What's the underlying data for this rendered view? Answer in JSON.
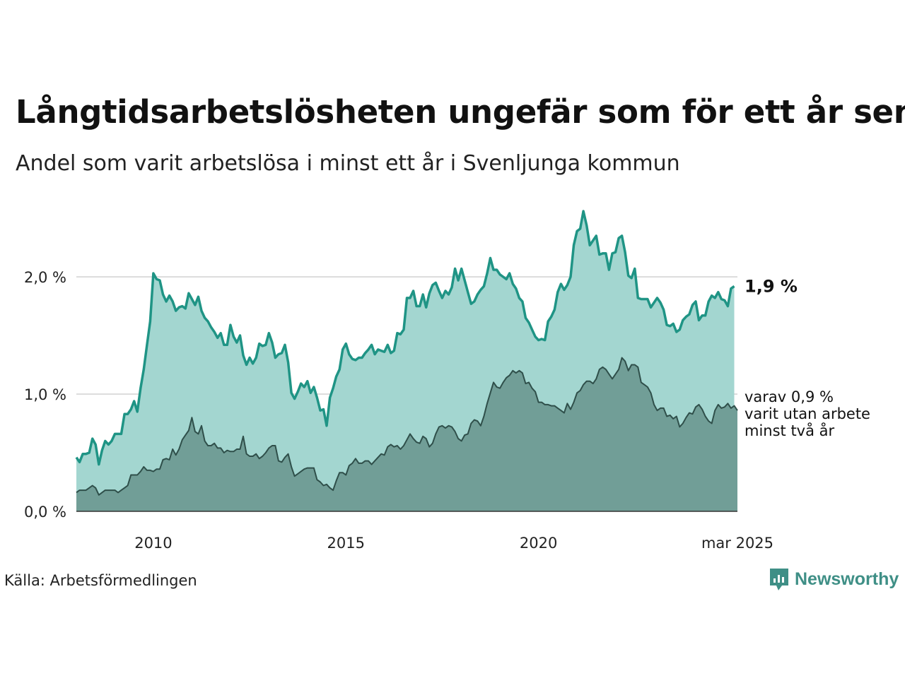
{
  "title": "Långtidsarbetslösheten ungefär som för ett år sen",
  "subtitle": "Andel som varit arbetslösa i minst ett år i Svenljunga kommun",
  "source": "Källa: Arbetsförmedlingen",
  "logo_text": "Newsworthy",
  "colors": {
    "line_total": "#1f9485",
    "area_total": "#a3d6d0",
    "line_two_years": "#2f4f4a",
    "area_two_years": "#719e97",
    "grid": "#dddddd",
    "logo": "#3f8f86"
  },
  "chart_data": {
    "type": "area",
    "x_start": "2008-01",
    "x_end": "2025-03",
    "frequency": "monthly",
    "ylim": [
      0,
      2.7
    ],
    "ytick_values": [
      0,
      1,
      2
    ],
    "ytick_labels": [
      "0,0 %",
      "1,0 %",
      "2,0 %"
    ],
    "xtick_dates": [
      "2010-01",
      "2015-01",
      "2020-01",
      "2025-03"
    ],
    "xtick_labels": [
      "2010",
      "2015",
      "2020",
      "mar 2025"
    ],
    "grid": true,
    "end_label_total": "1,9 %",
    "end_label_two_years": [
      "varav 0,9 %",
      "varit utan arbete",
      "minst två år"
    ],
    "series": [
      {
        "values": [
          0.46,
          0.42,
          0.49,
          0.49,
          0.5,
          0.62,
          0.57,
          0.4,
          0.52,
          0.6,
          0.57,
          0.6,
          0.66,
          0.66,
          0.66,
          0.83,
          0.83,
          0.87,
          0.94,
          0.85,
          1.05,
          1.21,
          1.42,
          1.62,
          2.03,
          1.98,
          1.97,
          1.85,
          1.79,
          1.84,
          1.79,
          1.71,
          1.74,
          1.75,
          1.73,
          1.86,
          1.81,
          1.76,
          1.83,
          1.71,
          1.65,
          1.62,
          1.57,
          1.53,
          1.48,
          1.52,
          1.42,
          1.42,
          1.59,
          1.49,
          1.44,
          1.5,
          1.33,
          1.25,
          1.31,
          1.26,
          1.31,
          1.43,
          1.41,
          1.42,
          1.52,
          1.44,
          1.31,
          1.34,
          1.35,
          1.42,
          1.27,
          1.01,
          0.96,
          1.02,
          1.09,
          1.06,
          1.11,
          1.01,
          1.06,
          0.97,
          0.86,
          0.87,
          0.73,
          0.97,
          1.05,
          1.15,
          1.21,
          1.38,
          1.43,
          1.34,
          1.3,
          1.29,
          1.31,
          1.31,
          1.35,
          1.38,
          1.42,
          1.34,
          1.38,
          1.37,
          1.36,
          1.42,
          1.35,
          1.37,
          1.52,
          1.51,
          1.55,
          1.82,
          1.82,
          1.88,
          1.75,
          1.75,
          1.85,
          1.74,
          1.86,
          1.93,
          1.95,
          1.88,
          1.82,
          1.88,
          1.85,
          1.91,
          2.07,
          1.97,
          2.07,
          1.97,
          1.87,
          1.77,
          1.79,
          1.85,
          1.89,
          1.92,
          2.03,
          2.16,
          2.06,
          2.06,
          2.02,
          2.0,
          1.98,
          2.03,
          1.94,
          1.9,
          1.82,
          1.79,
          1.65,
          1.61,
          1.55,
          1.49,
          1.46,
          1.47,
          1.46,
          1.62,
          1.66,
          1.72,
          1.87,
          1.94,
          1.89,
          1.93,
          2.0,
          2.27,
          2.39,
          2.41,
          2.56,
          2.44,
          2.27,
          2.31,
          2.35,
          2.19,
          2.2,
          2.2,
          2.06,
          2.2,
          2.21,
          2.33,
          2.35,
          2.21,
          2.01,
          1.99,
          2.07,
          1.82,
          1.81,
          1.81,
          1.81,
          1.74,
          1.78,
          1.82,
          1.78,
          1.72,
          1.59,
          1.58,
          1.6,
          1.53,
          1.55,
          1.63,
          1.66,
          1.68,
          1.76,
          1.79,
          1.63,
          1.67,
          1.67,
          1.79,
          1.84,
          1.82,
          1.87,
          1.81,
          1.8,
          1.75,
          1.9,
          1.92
        ]
      },
      {
        "values": [
          0.16,
          0.18,
          0.18,
          0.18,
          0.2,
          0.22,
          0.2,
          0.14,
          0.16,
          0.18,
          0.18,
          0.18,
          0.18,
          0.16,
          0.18,
          0.2,
          0.22,
          0.31,
          0.31,
          0.31,
          0.34,
          0.38,
          0.35,
          0.35,
          0.34,
          0.36,
          0.36,
          0.44,
          0.45,
          0.44,
          0.53,
          0.48,
          0.53,
          0.61,
          0.65,
          0.69,
          0.8,
          0.68,
          0.66,
          0.73,
          0.6,
          0.56,
          0.56,
          0.58,
          0.54,
          0.54,
          0.5,
          0.52,
          0.51,
          0.51,
          0.53,
          0.53,
          0.64,
          0.49,
          0.47,
          0.47,
          0.49,
          0.45,
          0.47,
          0.5,
          0.54,
          0.56,
          0.56,
          0.43,
          0.42,
          0.46,
          0.49,
          0.38,
          0.3,
          0.32,
          0.34,
          0.36,
          0.37,
          0.37,
          0.37,
          0.27,
          0.25,
          0.22,
          0.23,
          0.2,
          0.18,
          0.26,
          0.33,
          0.33,
          0.31,
          0.39,
          0.41,
          0.45,
          0.41,
          0.41,
          0.43,
          0.43,
          0.4,
          0.43,
          0.46,
          0.49,
          0.48,
          0.55,
          0.57,
          0.55,
          0.56,
          0.53,
          0.56,
          0.61,
          0.66,
          0.62,
          0.59,
          0.58,
          0.64,
          0.62,
          0.55,
          0.58,
          0.66,
          0.72,
          0.73,
          0.71,
          0.73,
          0.72,
          0.68,
          0.62,
          0.6,
          0.65,
          0.66,
          0.75,
          0.78,
          0.77,
          0.73,
          0.81,
          0.92,
          1.01,
          1.1,
          1.06,
          1.05,
          1.1,
          1.14,
          1.16,
          1.2,
          1.18,
          1.2,
          1.18,
          1.09,
          1.1,
          1.05,
          1.02,
          0.93,
          0.93,
          0.91,
          0.91,
          0.9,
          0.9,
          0.88,
          0.86,
          0.84,
          0.92,
          0.87,
          0.93,
          1.01,
          1.03,
          1.08,
          1.11,
          1.11,
          1.09,
          1.13,
          1.21,
          1.23,
          1.21,
          1.17,
          1.13,
          1.17,
          1.21,
          1.31,
          1.28,
          1.2,
          1.25,
          1.25,
          1.23,
          1.1,
          1.08,
          1.06,
          1.01,
          0.91,
          0.86,
          0.88,
          0.88,
          0.81,
          0.82,
          0.79,
          0.81,
          0.72,
          0.75,
          0.8,
          0.84,
          0.83,
          0.89,
          0.91,
          0.87,
          0.81,
          0.77,
          0.75,
          0.86,
          0.91,
          0.88,
          0.89,
          0.92,
          0.88,
          0.9,
          0.86
        ]
      }
    ]
  }
}
